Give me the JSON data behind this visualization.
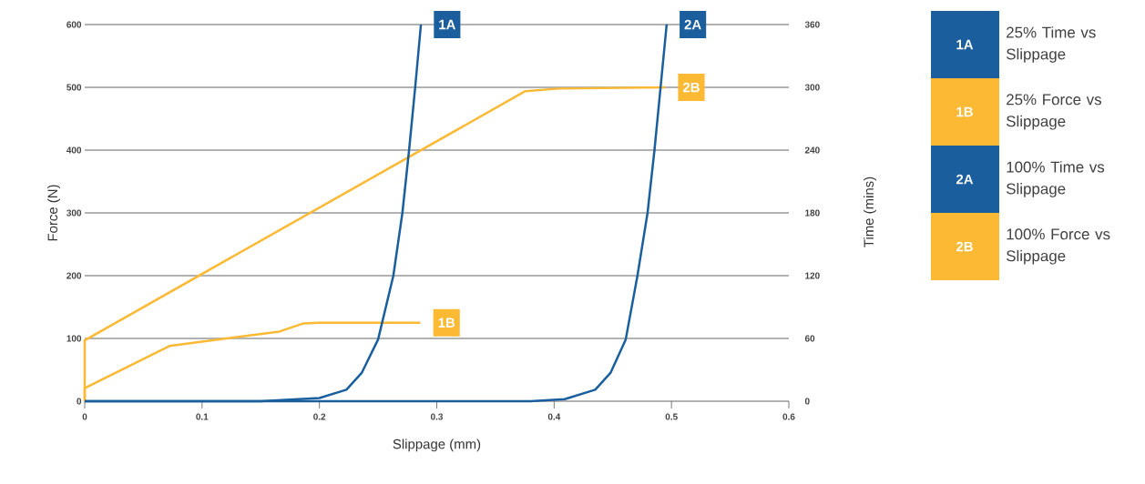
{
  "chart_data": {
    "type": "line",
    "xlabel": "Slippage (mm)",
    "ylabel": "Force (N)",
    "y2label": "Time (mins)",
    "xlim": [
      0,
      0.6
    ],
    "xticks": [
      0,
      0.1,
      0.2,
      0.3,
      0.4,
      0.5,
      0.6
    ],
    "ylim": [
      0,
      600
    ],
    "yticks": [
      0,
      100,
      200,
      300,
      400,
      500,
      600
    ],
    "y2lim": [
      0,
      360
    ],
    "y2ticks": [
      0,
      60,
      120,
      180,
      240,
      300,
      360
    ],
    "grid": "y",
    "legend": "right",
    "marker": "none",
    "line_style": "solid",
    "series": [
      {
        "name": "1A",
        "color": "#1a5e9e",
        "axis": "y2",
        "x": [
          0,
          0.15,
          0.2,
          0.223,
          0.236,
          0.25,
          0.263,
          0.2707,
          0.2764,
          0.2816,
          0.2865
        ],
        "values": [
          0,
          0,
          3,
          11,
          27,
          59,
          120,
          180,
          240,
          300,
          360
        ]
      },
      {
        "name": "1B",
        "color": "#fbb934",
        "x": [
          0,
          0,
          0.0722,
          0.166,
          0.1866,
          0.1995,
          0.286
        ],
        "values": [
          0,
          21,
          88,
          111,
          124,
          125,
          125
        ]
      },
      {
        "name": "2A",
        "color": "#1a5e9e",
        "axis": "y2",
        "x": [
          0,
          0.38,
          0.409,
          0.435,
          0.448,
          0.461,
          0.471,
          0.4796,
          0.4855,
          0.4907,
          0.4959
        ],
        "values": [
          0,
          0,
          2,
          11,
          27,
          59,
          120,
          180,
          240,
          300,
          360
        ]
      },
      {
        "name": "2B",
        "color": "#fbb934",
        "x": [
          0,
          0,
          0.3755,
          0.404,
          0.4946
        ],
        "values": [
          0,
          97,
          494,
          498,
          500
        ]
      }
    ],
    "annotations": [
      "25% Time vs Slippage",
      "25% Force vs Slippage",
      "100% Time vs Slippage",
      "100% Force vs Slippage"
    ]
  }
}
